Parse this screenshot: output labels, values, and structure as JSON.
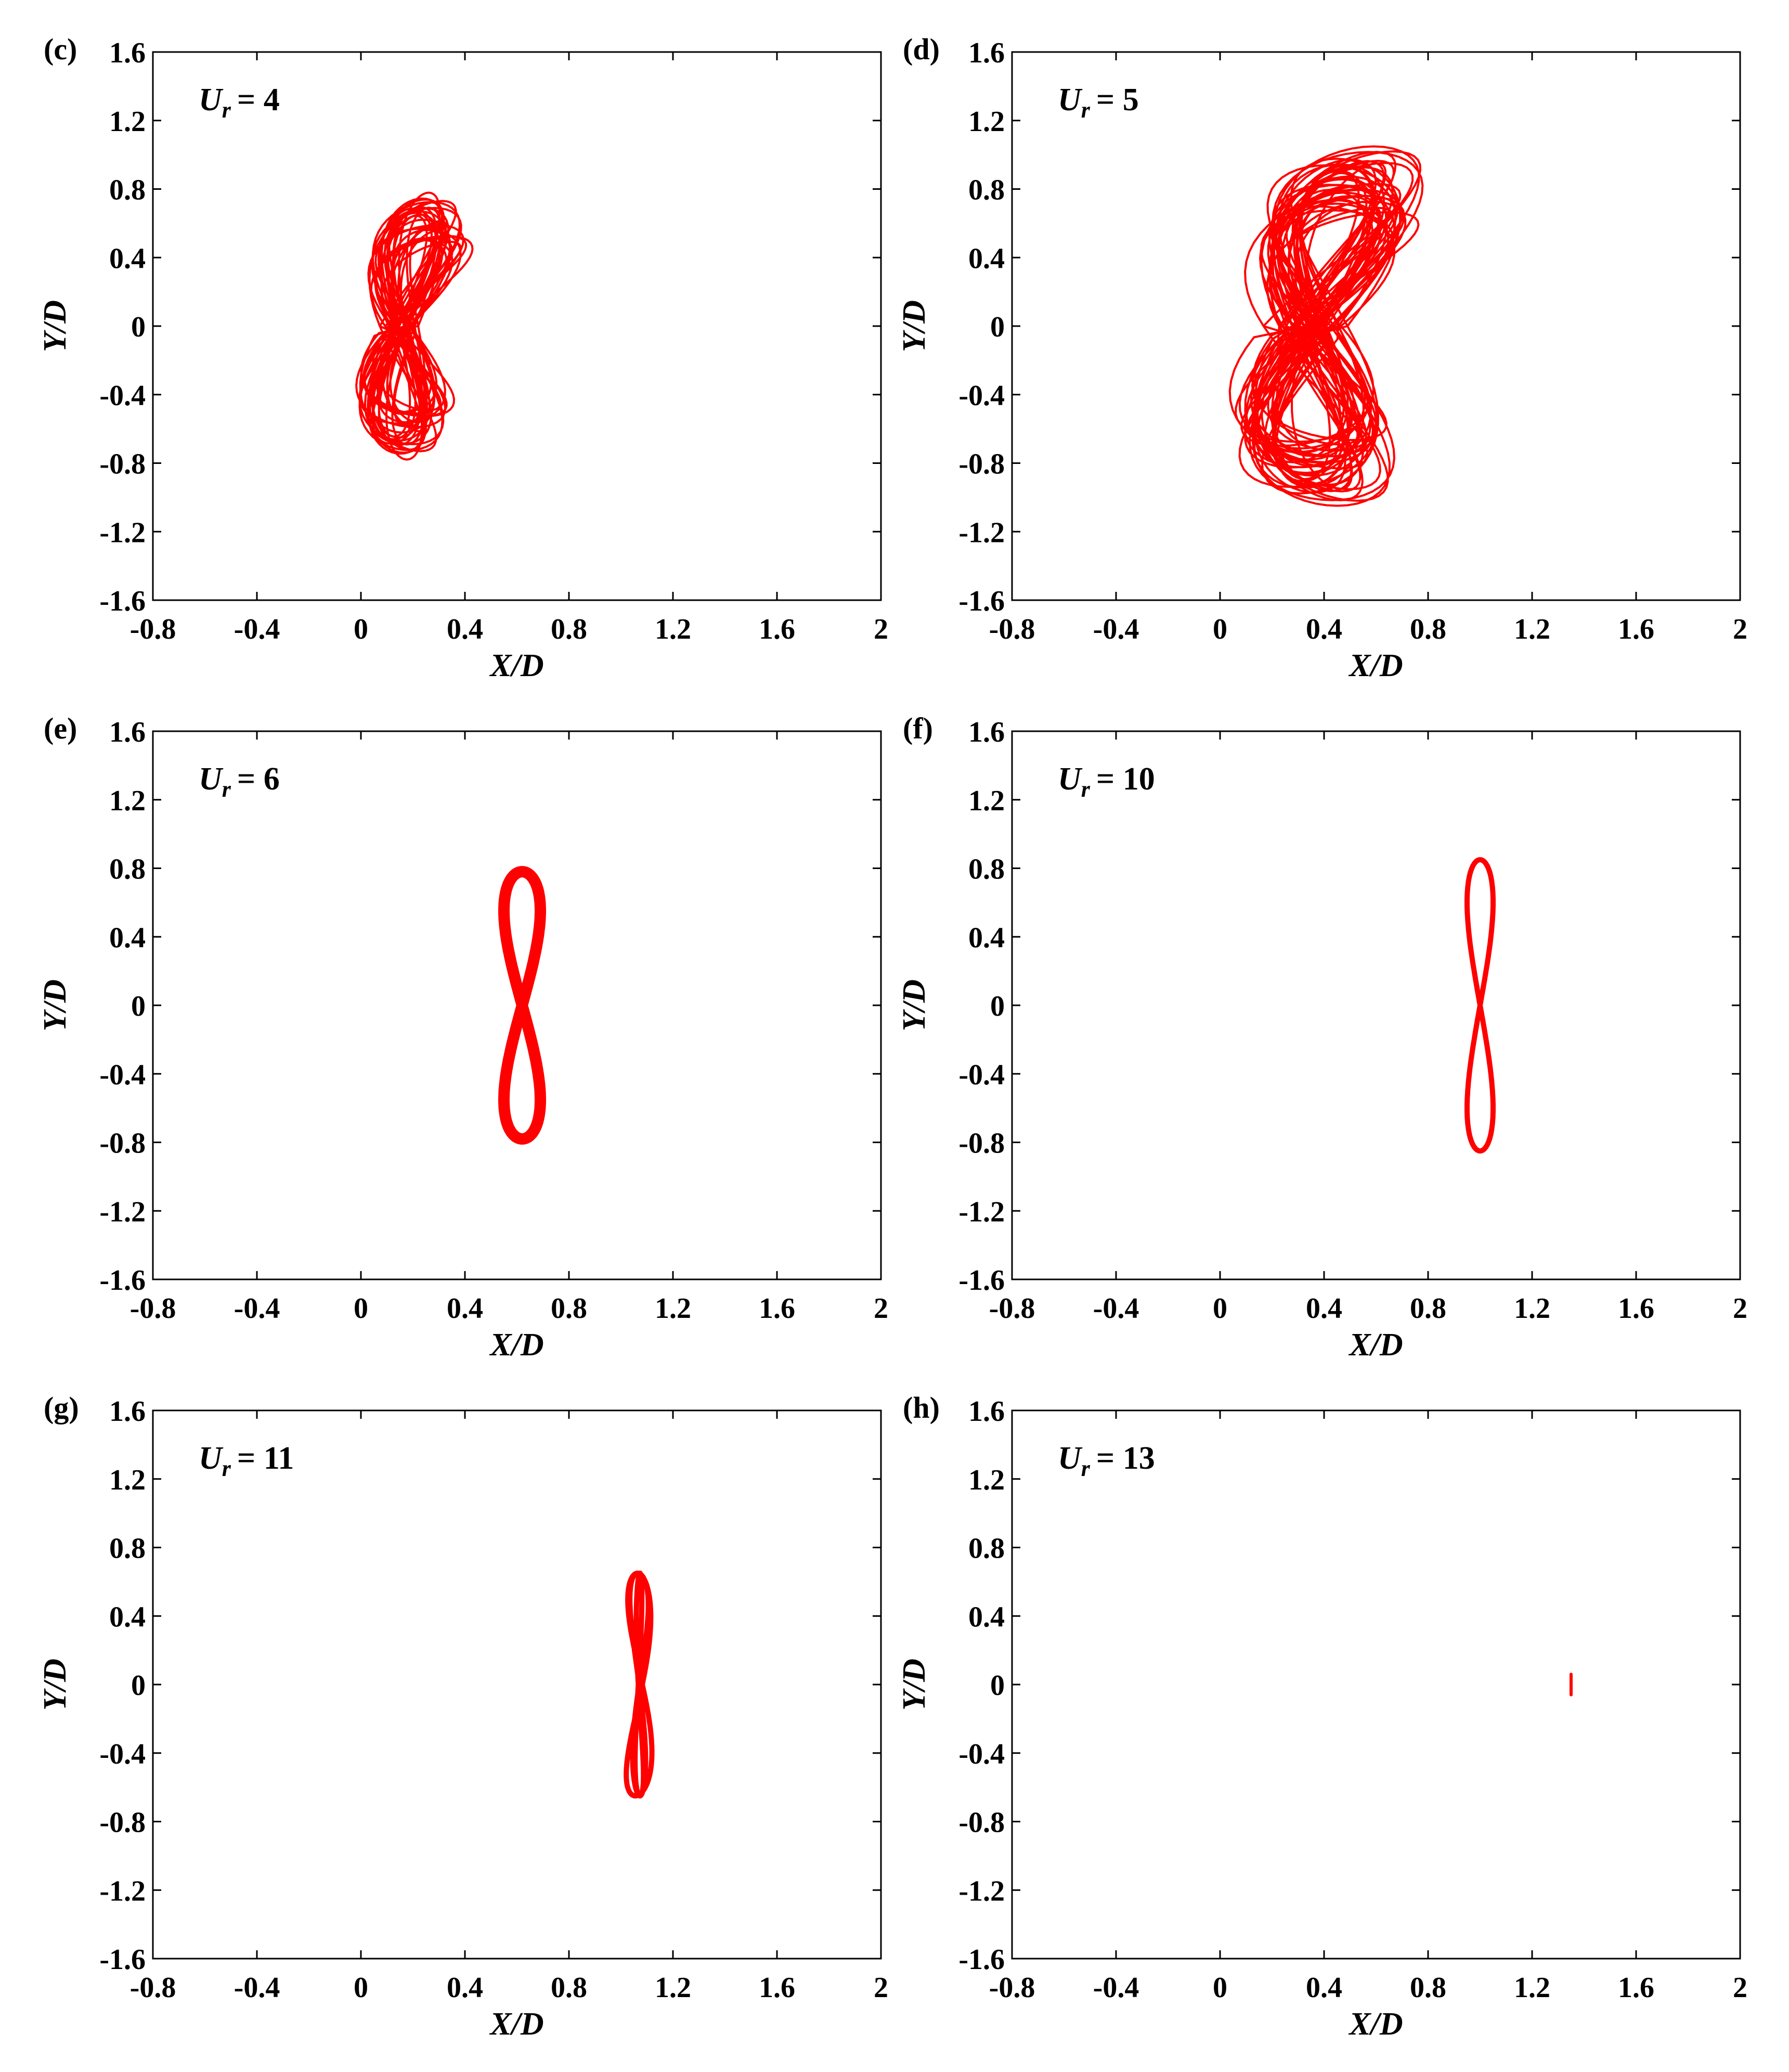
{
  "figure": {
    "x_axis_label": "X/D",
    "y_axis_label": "Y/D"
  },
  "chart_data": [
    {
      "type": "line",
      "panel_label": "(c)",
      "annotation_symbol": "U",
      "annotation_subscript": "r",
      "annotation_value": "= 4",
      "xlabel": "X/D",
      "ylabel": "Y/D",
      "xlim": [
        -0.8,
        2
      ],
      "ylim": [
        -1.6,
        1.6
      ],
      "x_ticks": [
        "-0.8",
        "-0.4",
        "0",
        "0.4",
        "0.8",
        "1.2",
        "1.6",
        "2"
      ],
      "y_ticks": [
        "-1.6",
        "-1.2",
        "-0.8",
        "-0.4",
        "0",
        "0.4",
        "0.8",
        "1.2",
        "1.6"
      ],
      "series": [
        {
          "name": "trajectory",
          "color": "#ff0000",
          "pattern": "chaotic",
          "x_center": 0.22,
          "x_amplitude": 0.12,
          "y_amplitude": 0.78,
          "x_min": 0.0,
          "x_max": 0.5,
          "y_min": -0.88,
          "y_max": 0.85,
          "cycles": 30
        }
      ]
    },
    {
      "type": "line",
      "panel_label": "(d)",
      "annotation_symbol": "U",
      "annotation_subscript": "r",
      "annotation_value": "= 5",
      "xlabel": "X/D",
      "ylabel": "Y/D",
      "xlim": [
        -0.8,
        2
      ],
      "ylim": [
        -1.6,
        1.6
      ],
      "x_ticks": [
        "-0.8",
        "-0.4",
        "0",
        "0.4",
        "0.8",
        "1.2",
        "1.6",
        "2"
      ],
      "y_ticks": [
        "-1.6",
        "-1.2",
        "-0.8",
        "-0.4",
        "0",
        "0.4",
        "0.8",
        "1.2",
        "1.6"
      ],
      "series": [
        {
          "name": "trajectory",
          "color": "#ff0000",
          "pattern": "chaotic",
          "x_center": 0.45,
          "x_amplitude": 0.2,
          "y_amplitude": 1.05,
          "x_min": 0.08,
          "x_max": 0.93,
          "y_min": -1.13,
          "y_max": 1.15,
          "cycles": 40
        }
      ]
    },
    {
      "type": "line",
      "panel_label": "(e)",
      "annotation_symbol": "U",
      "annotation_subscript": "r",
      "annotation_value": "= 6",
      "xlabel": "X/D",
      "ylabel": "Y/D",
      "xlim": [
        -0.8,
        2
      ],
      "ylim": [
        -1.6,
        1.6
      ],
      "x_ticks": [
        "-0.8",
        "-0.4",
        "0",
        "0.4",
        "0.8",
        "1.2",
        "1.6",
        "2"
      ],
      "y_ticks": [
        "-1.6",
        "-1.2",
        "-0.8",
        "-0.4",
        "0",
        "0.4",
        "0.8",
        "1.2",
        "1.6"
      ],
      "series": [
        {
          "name": "trajectory",
          "color": "#ff0000",
          "pattern": "figure-eight",
          "x_center": 0.62,
          "x_amplitude": 0.07,
          "y_amplitude": 0.78,
          "x_min": 0.55,
          "x_max": 0.69,
          "y_min": -0.78,
          "y_max": 0.79,
          "line_weight": "thick"
        }
      ]
    },
    {
      "type": "line",
      "panel_label": "(f)",
      "annotation_symbol": "U",
      "annotation_subscript": "r",
      "annotation_value": "= 10",
      "xlabel": "X/D",
      "ylabel": "Y/D",
      "xlim": [
        -0.8,
        2
      ],
      "ylim": [
        -1.6,
        1.6
      ],
      "x_ticks": [
        "-0.8",
        "-0.4",
        "0",
        "0.4",
        "0.8",
        "1.2",
        "1.6",
        "2"
      ],
      "y_ticks": [
        "-1.6",
        "-1.2",
        "-0.8",
        "-0.4",
        "0",
        "0.4",
        "0.8",
        "1.2",
        "1.6"
      ],
      "series": [
        {
          "name": "trajectory",
          "color": "#ff0000",
          "pattern": "figure-eight",
          "x_center": 1.0,
          "x_amplitude": 0.05,
          "y_amplitude": 0.85,
          "x_min": 0.95,
          "x_max": 1.05,
          "y_min": -0.85,
          "y_max": 0.85,
          "line_weight": "medium"
        }
      ]
    },
    {
      "type": "line",
      "panel_label": "(g)",
      "annotation_symbol": "U",
      "annotation_subscript": "r",
      "annotation_value": "= 11",
      "xlabel": "X/D",
      "ylabel": "Y/D",
      "xlim": [
        -0.8,
        2
      ],
      "ylim": [
        -1.6,
        1.6
      ],
      "x_ticks": [
        "-0.8",
        "-0.4",
        "0",
        "0.4",
        "0.8",
        "1.2",
        "1.6",
        "2"
      ],
      "y_ticks": [
        "-1.6",
        "-1.2",
        "-0.8",
        "-0.4",
        "0",
        "0.4",
        "0.8",
        "1.2",
        "1.6"
      ],
      "series": [
        {
          "name": "trajectory",
          "color": "#ff0000",
          "pattern": "figure-eight-multi",
          "x_center": 1.07,
          "x_amplitude": 0.05,
          "y_amplitude": 0.65,
          "x_min": 1.01,
          "x_max": 1.11,
          "y_min": -0.67,
          "y_max": 0.67,
          "line_weight": "medium"
        }
      ]
    },
    {
      "type": "line",
      "panel_label": "(h)",
      "annotation_symbol": "U",
      "annotation_subscript": "r",
      "annotation_value": "= 13",
      "xlabel": "X/D",
      "ylabel": "Y/D",
      "xlim": [
        -0.8,
        2
      ],
      "ylim": [
        -1.6,
        1.6
      ],
      "x_ticks": [
        "-0.8",
        "-0.4",
        "0",
        "0.4",
        "0.8",
        "1.2",
        "1.6",
        "2"
      ],
      "y_ticks": [
        "-1.6",
        "-1.2",
        "-0.8",
        "-0.4",
        "0",
        "0.4",
        "0.8",
        "1.2",
        "1.6"
      ],
      "series": [
        {
          "name": "trajectory",
          "color": "#ff0000",
          "pattern": "vertical-segment",
          "x_center": 1.35,
          "x_amplitude": 0.0,
          "y_amplitude": 0.06,
          "x_min": 1.35,
          "x_max": 1.35,
          "y_min": -0.06,
          "y_max": 0.06,
          "line_weight": "thin"
        }
      ]
    }
  ]
}
